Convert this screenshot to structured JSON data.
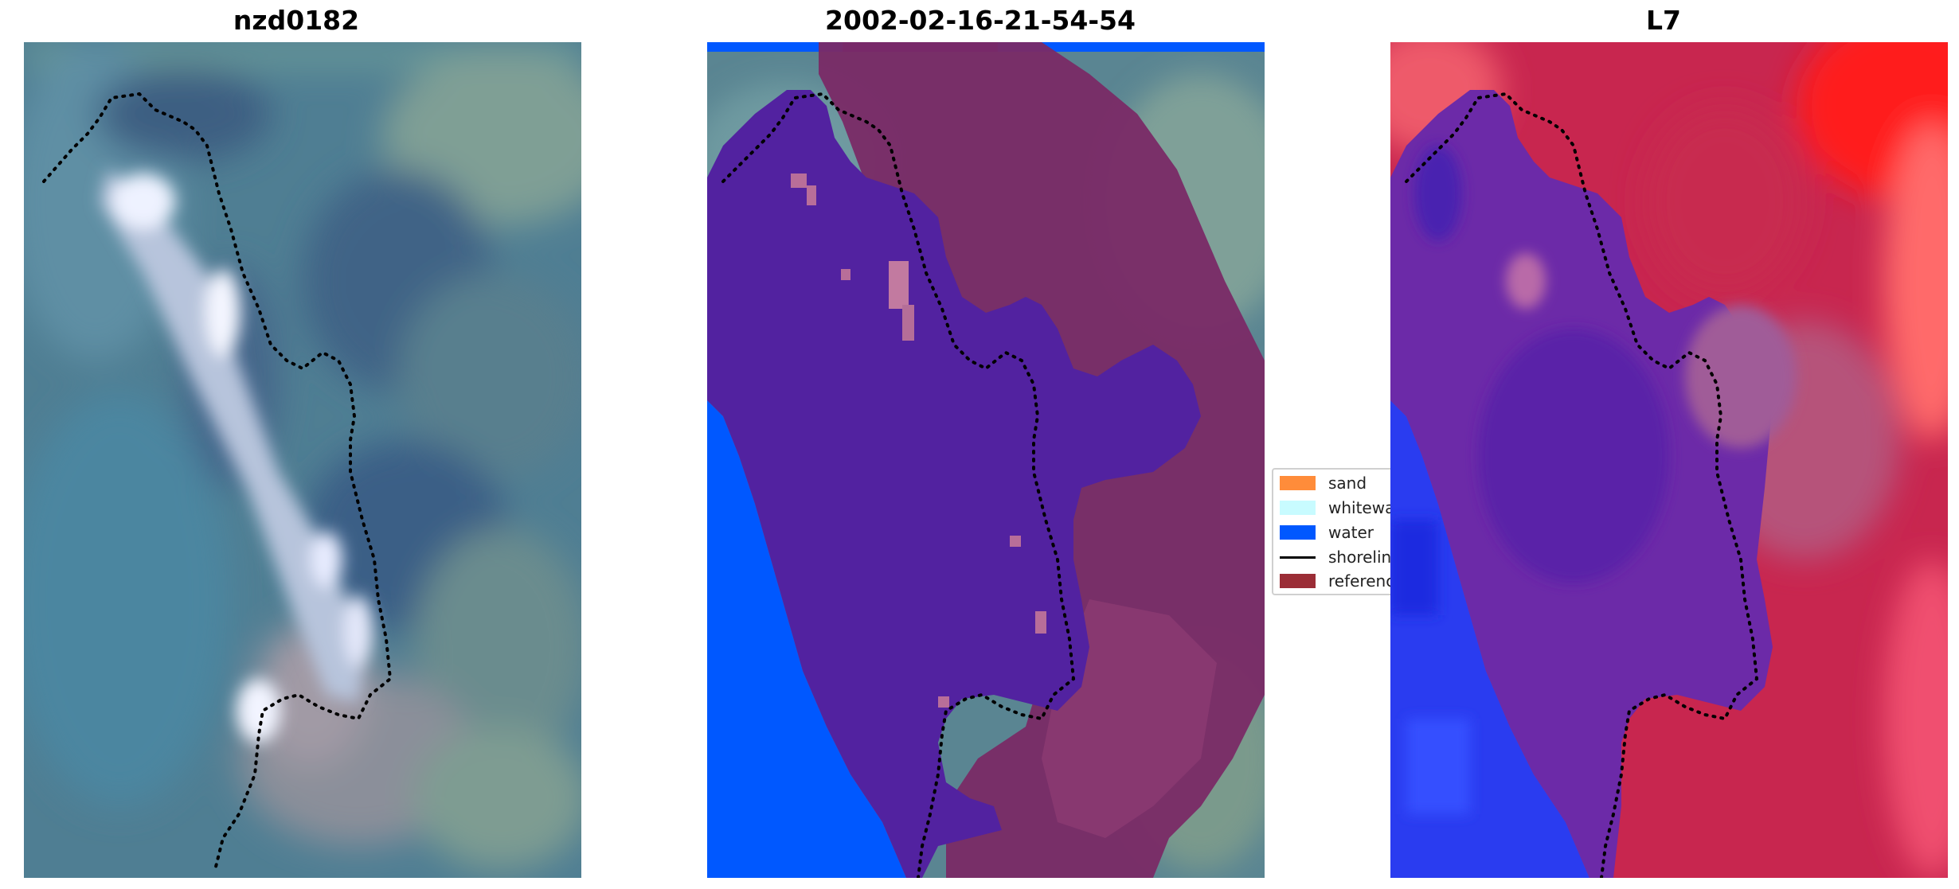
{
  "panels": [
    {
      "title": "nzd0182"
    },
    {
      "title": "2002-02-16-21-54-54"
    },
    {
      "title": "L7"
    }
  ],
  "legend": {
    "items": [
      {
        "label": "sand",
        "color": "#ff8c3a",
        "kind": "patch"
      },
      {
        "label": "whitewater",
        "color": "#c8fbff",
        "kind": "patch"
      },
      {
        "label": "water",
        "color": "#0058ff",
        "kind": "patch"
      },
      {
        "label": "shoreline",
        "color": "#000000",
        "kind": "line"
      },
      {
        "label": "reference",
        "color": "#9b2d36",
        "kind": "patch"
      }
    ]
  },
  "colors": {
    "water_class": "#0058ff",
    "land_class": "#7a2a66",
    "overlay_purple": "#5222a0",
    "ndwi_red": "#d41a45",
    "ndwi_blue": "#2a3cf0"
  }
}
